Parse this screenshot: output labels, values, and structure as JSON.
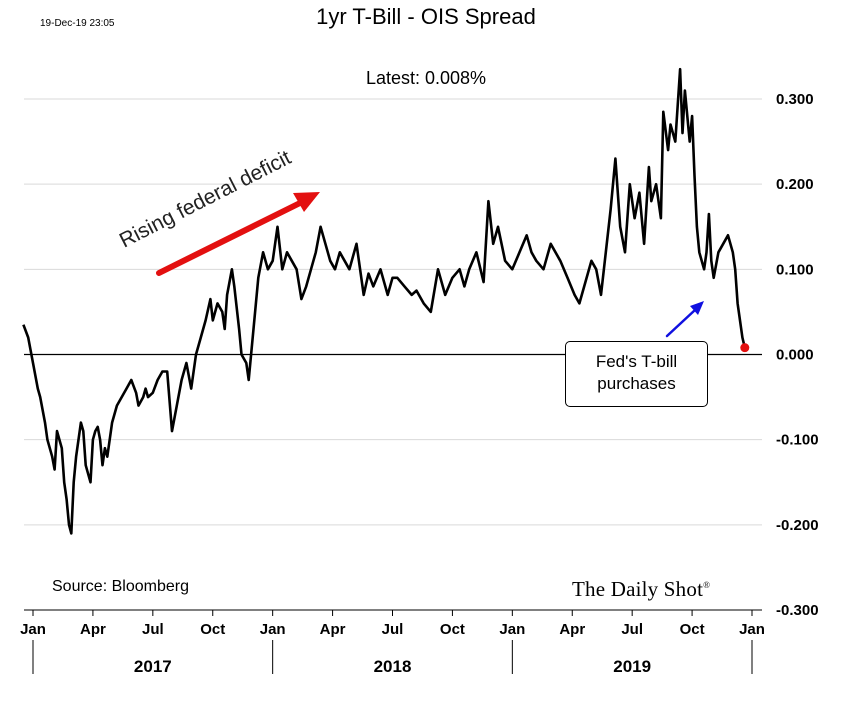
{
  "timestamp": "19-Dec-19 23:05",
  "source_label": "Source: Bloomberg",
  "brand": "The Daily Shot",
  "brand_mark": "®",
  "annotations": {
    "latest": "Latest:  0.008%",
    "deficit": "Rising federal deficit",
    "callout_line1": "Fed's T-bill",
    "callout_line2": "purchases"
  },
  "colors": {
    "line": "#000000",
    "deficit_arrow": "#e31010",
    "callout_arrow": "#1010e0",
    "latest_point": "#e31010",
    "grid": "#d9d9d9"
  },
  "chart_data": {
    "type": "line",
    "title": "1yr T-Bill - OIS Spread",
    "xlabel": "",
    "ylabel": "",
    "ylim": [
      -0.3,
      0.3
    ],
    "y_ticks": [
      "0.300",
      "0.200",
      "0.100",
      "0.000",
      "-0.100",
      "-0.200",
      "-0.300"
    ],
    "x_tick_labels": [
      "Jan",
      "Apr",
      "Jul",
      "Oct",
      "Jan",
      "Apr",
      "Jul",
      "Oct",
      "Jan",
      "Apr",
      "Jul",
      "Oct",
      "Jan"
    ],
    "years": [
      "2017",
      "2018",
      "2019"
    ],
    "x_domain": [
      2017.0,
      2020.0
    ],
    "latest_value": 0.008,
    "series": [
      {
        "name": "1yr T-Bill - OIS Spread",
        "x": [
          2016.96,
          2016.98,
          2017.0,
          2017.02,
          2017.03,
          2017.05,
          2017.06,
          2017.08,
          2017.09,
          2017.1,
          2017.12,
          2017.13,
          2017.14,
          2017.15,
          2017.16,
          2017.17,
          2017.18,
          2017.2,
          2017.21,
          2017.22,
          2017.24,
          2017.25,
          2017.26,
          2017.27,
          2017.28,
          2017.29,
          2017.3,
          2017.31,
          2017.33,
          2017.35,
          2017.37,
          2017.39,
          2017.41,
          2017.43,
          2017.44,
          2017.46,
          2017.47,
          2017.48,
          2017.5,
          2017.52,
          2017.54,
          2017.56,
          2017.58,
          2017.6,
          2017.62,
          2017.64,
          2017.66,
          2017.68,
          2017.7,
          2017.72,
          2017.74,
          2017.75,
          2017.77,
          2017.79,
          2017.8,
          2017.81,
          2017.83,
          2017.84,
          2017.86,
          2017.87,
          2017.89,
          2017.9,
          2017.92,
          2017.94,
          2017.96,
          2017.98,
          2018.0,
          2018.02,
          2018.04,
          2018.06,
          2018.08,
          2018.1,
          2018.12,
          2018.14,
          2018.16,
          2018.18,
          2018.2,
          2018.22,
          2018.24,
          2018.26,
          2018.28,
          2018.3,
          2018.32,
          2018.35,
          2018.38,
          2018.4,
          2018.42,
          2018.45,
          2018.48,
          2018.5,
          2018.52,
          2018.55,
          2018.58,
          2018.6,
          2018.63,
          2018.66,
          2018.69,
          2018.72,
          2018.75,
          2018.78,
          2018.8,
          2018.82,
          2018.85,
          2018.88,
          2018.9,
          2018.92,
          2018.94,
          2018.97,
          2019.0,
          2019.03,
          2019.06,
          2019.08,
          2019.1,
          2019.13,
          2019.16,
          2019.2,
          2019.23,
          2019.26,
          2019.28,
          2019.3,
          2019.33,
          2019.35,
          2019.37,
          2019.39,
          2019.41,
          2019.43,
          2019.45,
          2019.47,
          2019.49,
          2019.51,
          2019.53,
          2019.55,
          2019.57,
          2019.58,
          2019.6,
          2019.62,
          2019.63,
          2019.65,
          2019.66,
          2019.68,
          2019.7,
          2019.71,
          2019.72,
          2019.74,
          2019.75,
          2019.76,
          2019.77,
          2019.78,
          2019.8,
          2019.81,
          2019.82,
          2019.83,
          2019.84,
          2019.86,
          2019.88,
          2019.9,
          2019.92,
          2019.93,
          2019.94,
          2019.95,
          2019.96,
          2019.97
        ],
        "values": [
          0.035,
          0.02,
          -0.01,
          -0.04,
          -0.05,
          -0.08,
          -0.1,
          -0.12,
          -0.135,
          -0.09,
          -0.11,
          -0.15,
          -0.17,
          -0.2,
          -0.21,
          -0.15,
          -0.12,
          -0.08,
          -0.09,
          -0.13,
          -0.15,
          -0.1,
          -0.09,
          -0.085,
          -0.1,
          -0.13,
          -0.11,
          -0.12,
          -0.08,
          -0.06,
          -0.05,
          -0.04,
          -0.03,
          -0.045,
          -0.06,
          -0.05,
          -0.04,
          -0.05,
          -0.045,
          -0.03,
          -0.02,
          -0.02,
          -0.09,
          -0.06,
          -0.03,
          -0.01,
          -0.04,
          0.0,
          0.02,
          0.04,
          0.065,
          0.04,
          0.06,
          0.05,
          0.03,
          0.07,
          0.1,
          0.08,
          0.03,
          0.0,
          -0.01,
          -0.03,
          0.03,
          0.09,
          0.12,
          0.1,
          0.11,
          0.15,
          0.1,
          0.12,
          0.11,
          0.1,
          0.065,
          0.08,
          0.1,
          0.12,
          0.15,
          0.13,
          0.11,
          0.1,
          0.12,
          0.11,
          0.1,
          0.13,
          0.07,
          0.095,
          0.08,
          0.1,
          0.07,
          0.09,
          0.09,
          0.08,
          0.07,
          0.075,
          0.06,
          0.05,
          0.1,
          0.07,
          0.09,
          0.1,
          0.08,
          0.1,
          0.12,
          0.085,
          0.18,
          0.13,
          0.15,
          0.11,
          0.1,
          0.12,
          0.14,
          0.12,
          0.11,
          0.1,
          0.13,
          0.11,
          0.09,
          0.07,
          0.06,
          0.08,
          0.11,
          0.1,
          0.07,
          0.12,
          0.17,
          0.23,
          0.15,
          0.12,
          0.2,
          0.16,
          0.19,
          0.13,
          0.22,
          0.18,
          0.2,
          0.16,
          0.285,
          0.24,
          0.27,
          0.25,
          0.335,
          0.26,
          0.31,
          0.25,
          0.28,
          0.21,
          0.15,
          0.12,
          0.1,
          0.12,
          0.165,
          0.11,
          0.09,
          0.12,
          0.13,
          0.14,
          0.12,
          0.1,
          0.06,
          0.04,
          0.02,
          0.008
        ]
      }
    ]
  }
}
